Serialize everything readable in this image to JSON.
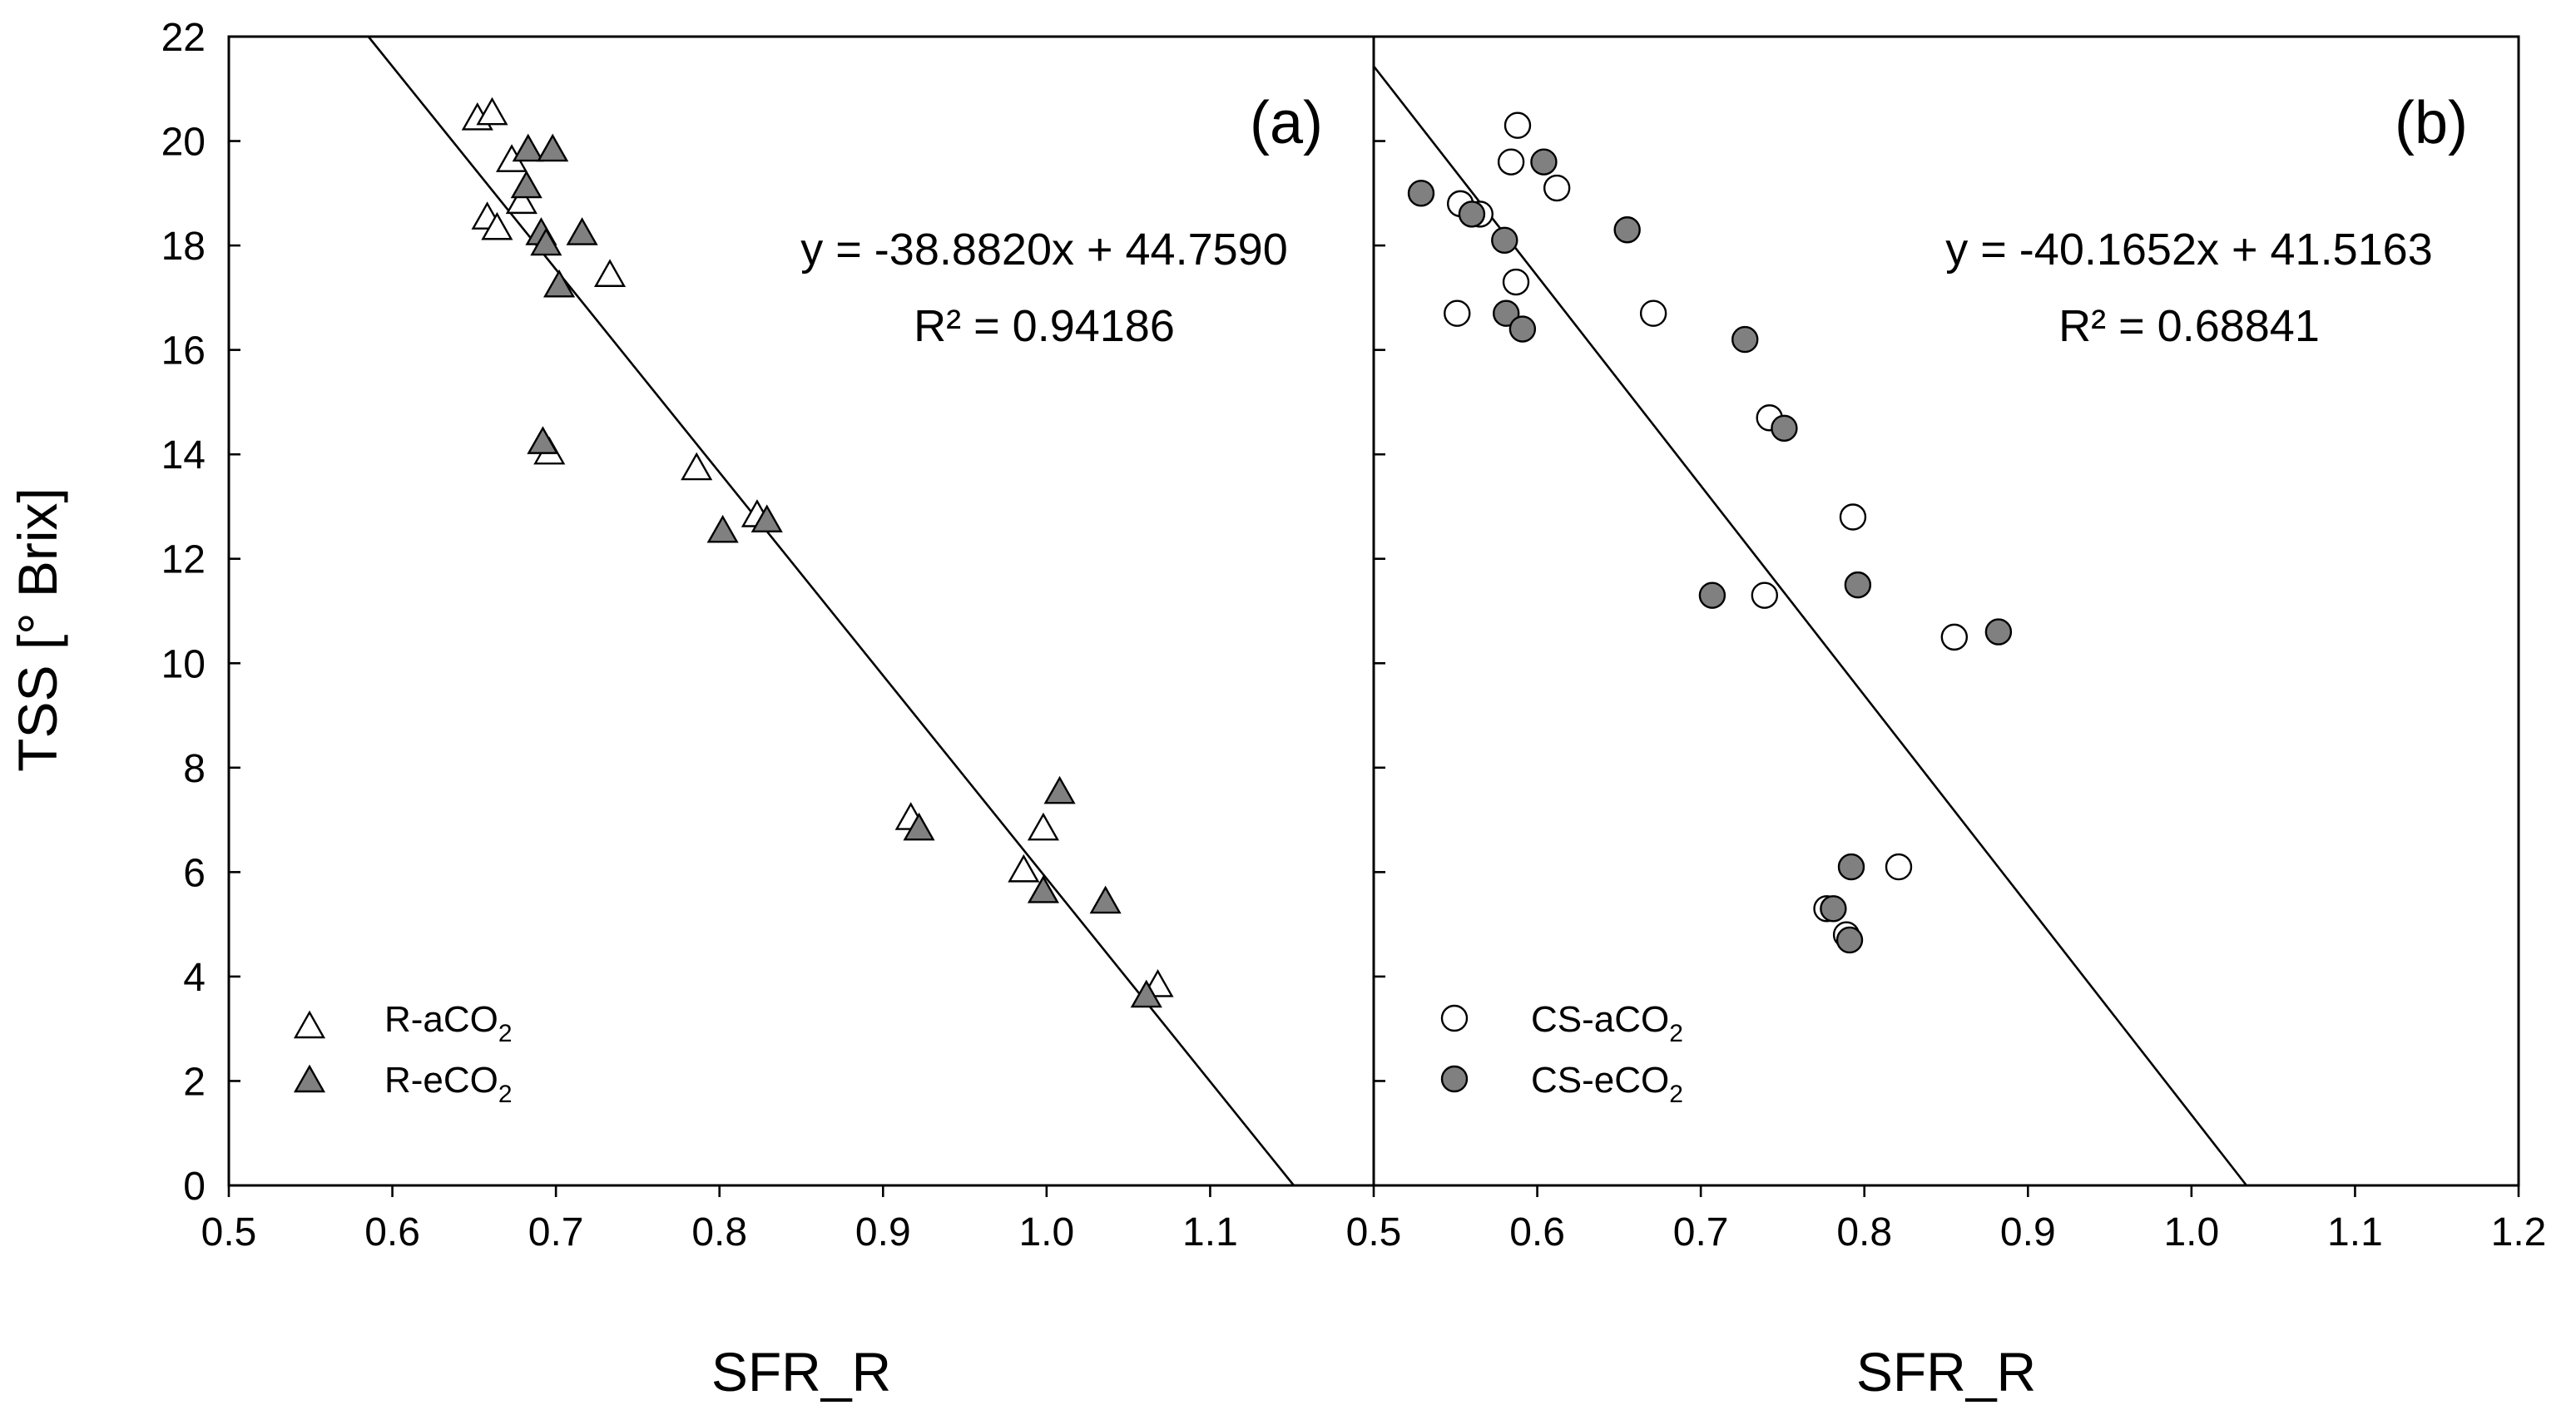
{
  "chart_data": [
    {
      "type": "scatter",
      "panel_label": "(a)",
      "xlabel": "SFR_R",
      "ylabel": "TSS [° Brix]",
      "xlim": [
        0.5,
        1.2
      ],
      "ylim": [
        0,
        22
      ],
      "xticks": [
        "0.5",
        "0.6",
        "0.7",
        "0.8",
        "0.9",
        "1.0",
        "1.1"
      ],
      "yticks": [
        "0",
        "2",
        "4",
        "6",
        "8",
        "10",
        "12",
        "14",
        "16",
        "18",
        "20",
        "22"
      ],
      "equation": "y = -38.8820x + 44.7590",
      "r_squared": "R² = 0.94186",
      "regression": {
        "slope": -38.882,
        "intercept": 44.759
      },
      "legend_position": "bottom-left",
      "series": [
        {
          "name": "R-aCO2",
          "legend_main": "R-aCO",
          "legend_sub": "2",
          "marker": "triangle",
          "fill": "#ffffff",
          "points": [
            [
              0.652,
              20.4
            ],
            [
              0.661,
              20.5
            ],
            [
              0.673,
              19.6
            ],
            [
              0.679,
              18.8
            ],
            [
              0.658,
              18.5
            ],
            [
              0.664,
              18.3
            ],
            [
              0.733,
              17.4
            ],
            [
              0.696,
              14.0
            ],
            [
              0.786,
              13.7
            ],
            [
              0.823,
              12.8
            ],
            [
              0.917,
              7.0
            ],
            [
              0.986,
              6.0
            ],
            [
              0.998,
              6.8
            ],
            [
              1.068,
              3.8
            ]
          ]
        },
        {
          "name": "R-eCO2",
          "legend_main": "R-eCO",
          "legend_sub": "2",
          "marker": "triangle",
          "fill": "#808080",
          "points": [
            [
              0.683,
              19.8
            ],
            [
              0.698,
              19.8
            ],
            [
              0.682,
              19.1
            ],
            [
              0.716,
              18.2
            ],
            [
              0.691,
              18.2
            ],
            [
              0.694,
              18.0
            ],
            [
              0.702,
              17.2
            ],
            [
              0.692,
              14.2
            ],
            [
              0.802,
              12.5
            ],
            [
              0.829,
              12.7
            ],
            [
              0.922,
              6.8
            ],
            [
              1.008,
              7.5
            ],
            [
              0.998,
              5.6
            ],
            [
              1.036,
              5.4
            ],
            [
              1.061,
              3.6
            ]
          ]
        }
      ]
    },
    {
      "type": "scatter",
      "panel_label": "(b)",
      "xlabel": "SFR_R",
      "ylabel": "TSS [° Brix]",
      "xlim": [
        0.5,
        1.2
      ],
      "ylim": [
        0,
        22
      ],
      "xticks": [
        "0.5",
        "0.6",
        "0.7",
        "0.8",
        "0.9",
        "1.0",
        "1.1",
        "1.2"
      ],
      "yticks": [
        "0",
        "2",
        "4",
        "6",
        "8",
        "10",
        "12",
        "14",
        "16",
        "18",
        "20",
        "22"
      ],
      "equation": "y = -40.1652x + 41.5163",
      "r_squared": "R² = 0.68841",
      "regression": {
        "slope": -40.1652,
        "intercept": 41.5163
      },
      "legend_position": "bottom-left",
      "series": [
        {
          "name": "CS-aCO2",
          "legend_main": "CS-aCO",
          "legend_sub": "2",
          "marker": "circle",
          "fill": "#ffffff",
          "points": [
            [
              0.588,
              20.3
            ],
            [
              0.584,
              19.6
            ],
            [
              0.612,
              19.1
            ],
            [
              0.553,
              18.8
            ],
            [
              0.565,
              18.6
            ],
            [
              0.587,
              17.3
            ],
            [
              0.551,
              16.7
            ],
            [
              0.671,
              16.7
            ],
            [
              0.742,
              14.7
            ],
            [
              0.793,
              12.8
            ],
            [
              0.739,
              11.3
            ],
            [
              0.855,
              10.5
            ],
            [
              0.821,
              6.1
            ],
            [
              0.777,
              5.3
            ],
            [
              0.789,
              4.8
            ]
          ]
        },
        {
          "name": "CS-eCO2",
          "legend_main": "CS-eCO",
          "legend_sub": "2",
          "marker": "circle",
          "fill": "#808080",
          "points": [
            [
              0.529,
              19.0
            ],
            [
              0.604,
              19.6
            ],
            [
              0.56,
              18.6
            ],
            [
              0.58,
              18.1
            ],
            [
              0.655,
              18.3
            ],
            [
              0.581,
              16.7
            ],
            [
              0.591,
              16.4
            ],
            [
              0.727,
              16.2
            ],
            [
              0.751,
              14.5
            ],
            [
              0.707,
              11.3
            ],
            [
              0.796,
              11.5
            ],
            [
              0.882,
              10.6
            ],
            [
              0.792,
              6.1
            ],
            [
              0.781,
              5.3
            ],
            [
              0.791,
              4.7
            ]
          ]
        }
      ]
    }
  ]
}
